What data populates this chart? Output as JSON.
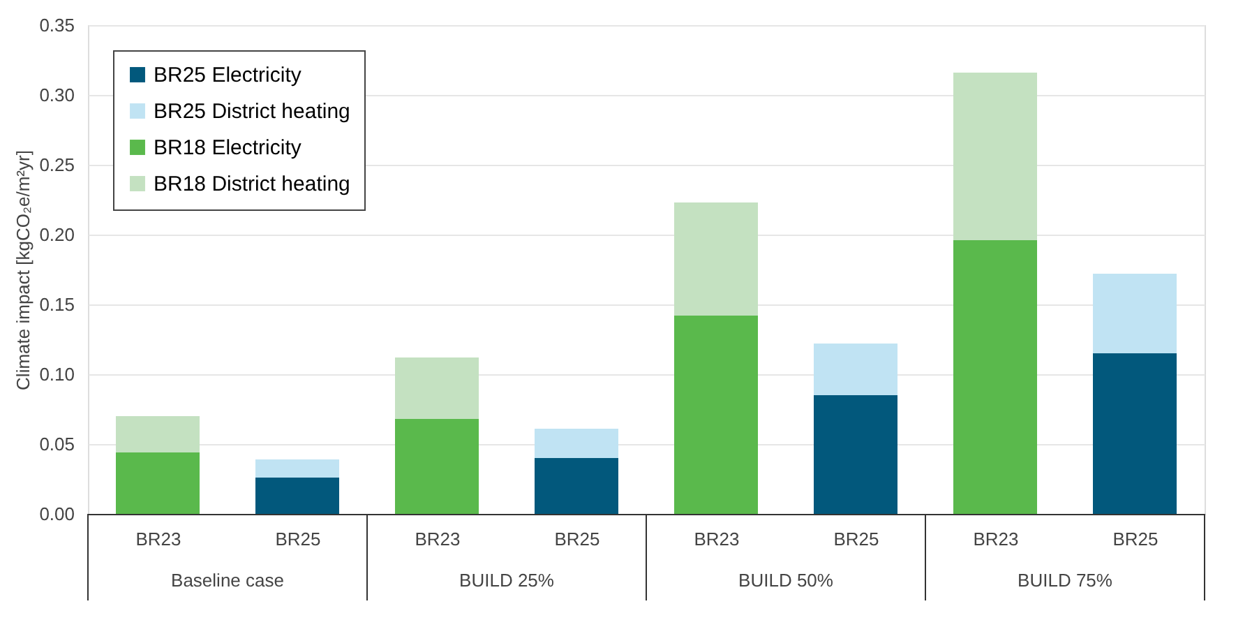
{
  "chart_data": {
    "type": "bar",
    "stacked": true,
    "ylabel": "Climate impact [kgCO₂e/m²yr]",
    "categories": [
      "BR23",
      "BR25",
      "BR23",
      "BR25",
      "BR23",
      "BR25",
      "BR23",
      "BR25"
    ],
    "annotations": [
      "Baseline case",
      "BUILD 25%",
      "BUILD 50%",
      "BUILD 75%"
    ],
    "series": [
      {
        "name": "BR25 Electricity",
        "color": "#02587c",
        "values": [
          null,
          0.026,
          null,
          0.04,
          null,
          0.085,
          null,
          0.115
        ]
      },
      {
        "name": "BR25 District heating",
        "color": "#c0e3f3",
        "values": [
          null,
          0.013,
          null,
          0.021,
          null,
          0.037,
          null,
          0.057
        ]
      },
      {
        "name": "BR18 Electricity",
        "color": "#5ab94c",
        "values": [
          0.044,
          null,
          0.068,
          null,
          0.142,
          null,
          0.196,
          null
        ]
      },
      {
        "name": "BR18 District heating",
        "color": "#c4e1c1",
        "values": [
          0.026,
          null,
          0.044,
          null,
          0.081,
          null,
          0.12,
          null
        ]
      }
    ],
    "ylim": [
      0,
      0.35
    ],
    "yticks": [
      {
        "value": 0,
        "label": "0.00"
      },
      {
        "value": 0.05,
        "label": "0.05"
      },
      {
        "value": 0.1,
        "label": "0.10"
      },
      {
        "value": 0.15,
        "label": "0.15"
      },
      {
        "value": 0.2,
        "label": "0.20"
      },
      {
        "value": 0.25,
        "label": "0.25"
      },
      {
        "value": 0.3,
        "label": "0.30"
      },
      {
        "value": 0.35,
        "label": "0.35"
      }
    ],
    "grid": "y",
    "legend": "top left"
  }
}
